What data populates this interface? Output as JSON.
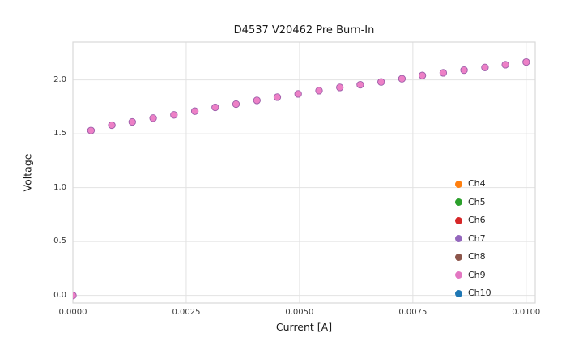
{
  "chart_data": {
    "type": "scatter",
    "title": "D4537 V20462 Pre Burn-In",
    "xlabel": "Current [A]",
    "ylabel": "Voltage",
    "xlim": [
      0,
      0.0102
    ],
    "ylim": [
      -0.07,
      2.35
    ],
    "grid": true,
    "legend_position": "lower right",
    "xticks": {
      "values": [
        0,
        0.0025,
        0.005,
        0.0075,
        0.01
      ],
      "labels": [
        "0.0000",
        "0.0025",
        "0.0050",
        "0.0075",
        "0.0100"
      ]
    },
    "yticks": {
      "values": [
        0,
        0.5,
        1.0,
        1.5,
        2.0
      ],
      "labels": [
        "0.0",
        "0.5",
        "1.0",
        "1.5",
        "2.0"
      ]
    },
    "legend": [
      {
        "label": "Ch4",
        "color": "#ff7f0e"
      },
      {
        "label": "Ch5",
        "color": "#2ca02c"
      },
      {
        "label": "Ch6",
        "color": "#d62728"
      },
      {
        "label": "Ch7",
        "color": "#9467bd"
      },
      {
        "label": "Ch8",
        "color": "#8c564b"
      },
      {
        "label": "Ch9",
        "color": "#e377c2"
      },
      {
        "label": "Ch10",
        "color": "#1f77b4"
      }
    ],
    "series_note": "All channels Ch4-Ch10 overlap at the same points; Ch9 (pink) markers are drawn on top and visible",
    "visible_marker_color": "#ed80c6",
    "marker_edge_color": "#9c5da9",
    "grid_color": "#e2e2e2",
    "x": [
      0,
      0.0004,
      0.00086,
      0.00131,
      0.00177,
      0.00223,
      0.00269,
      0.00314,
      0.0036,
      0.00406,
      0.00451,
      0.00497,
      0.00543,
      0.00589,
      0.00634,
      0.0068,
      0.00726,
      0.00771,
      0.00817,
      0.00863,
      0.00909,
      0.00954,
      0.01
    ],
    "y": [
      0.0,
      1.53,
      1.58,
      1.61,
      1.645,
      1.675,
      1.71,
      1.745,
      1.775,
      1.81,
      1.84,
      1.87,
      1.9,
      1.93,
      1.955,
      1.98,
      2.01,
      2.04,
      2.065,
      2.09,
      2.115,
      2.14,
      2.165
    ]
  }
}
